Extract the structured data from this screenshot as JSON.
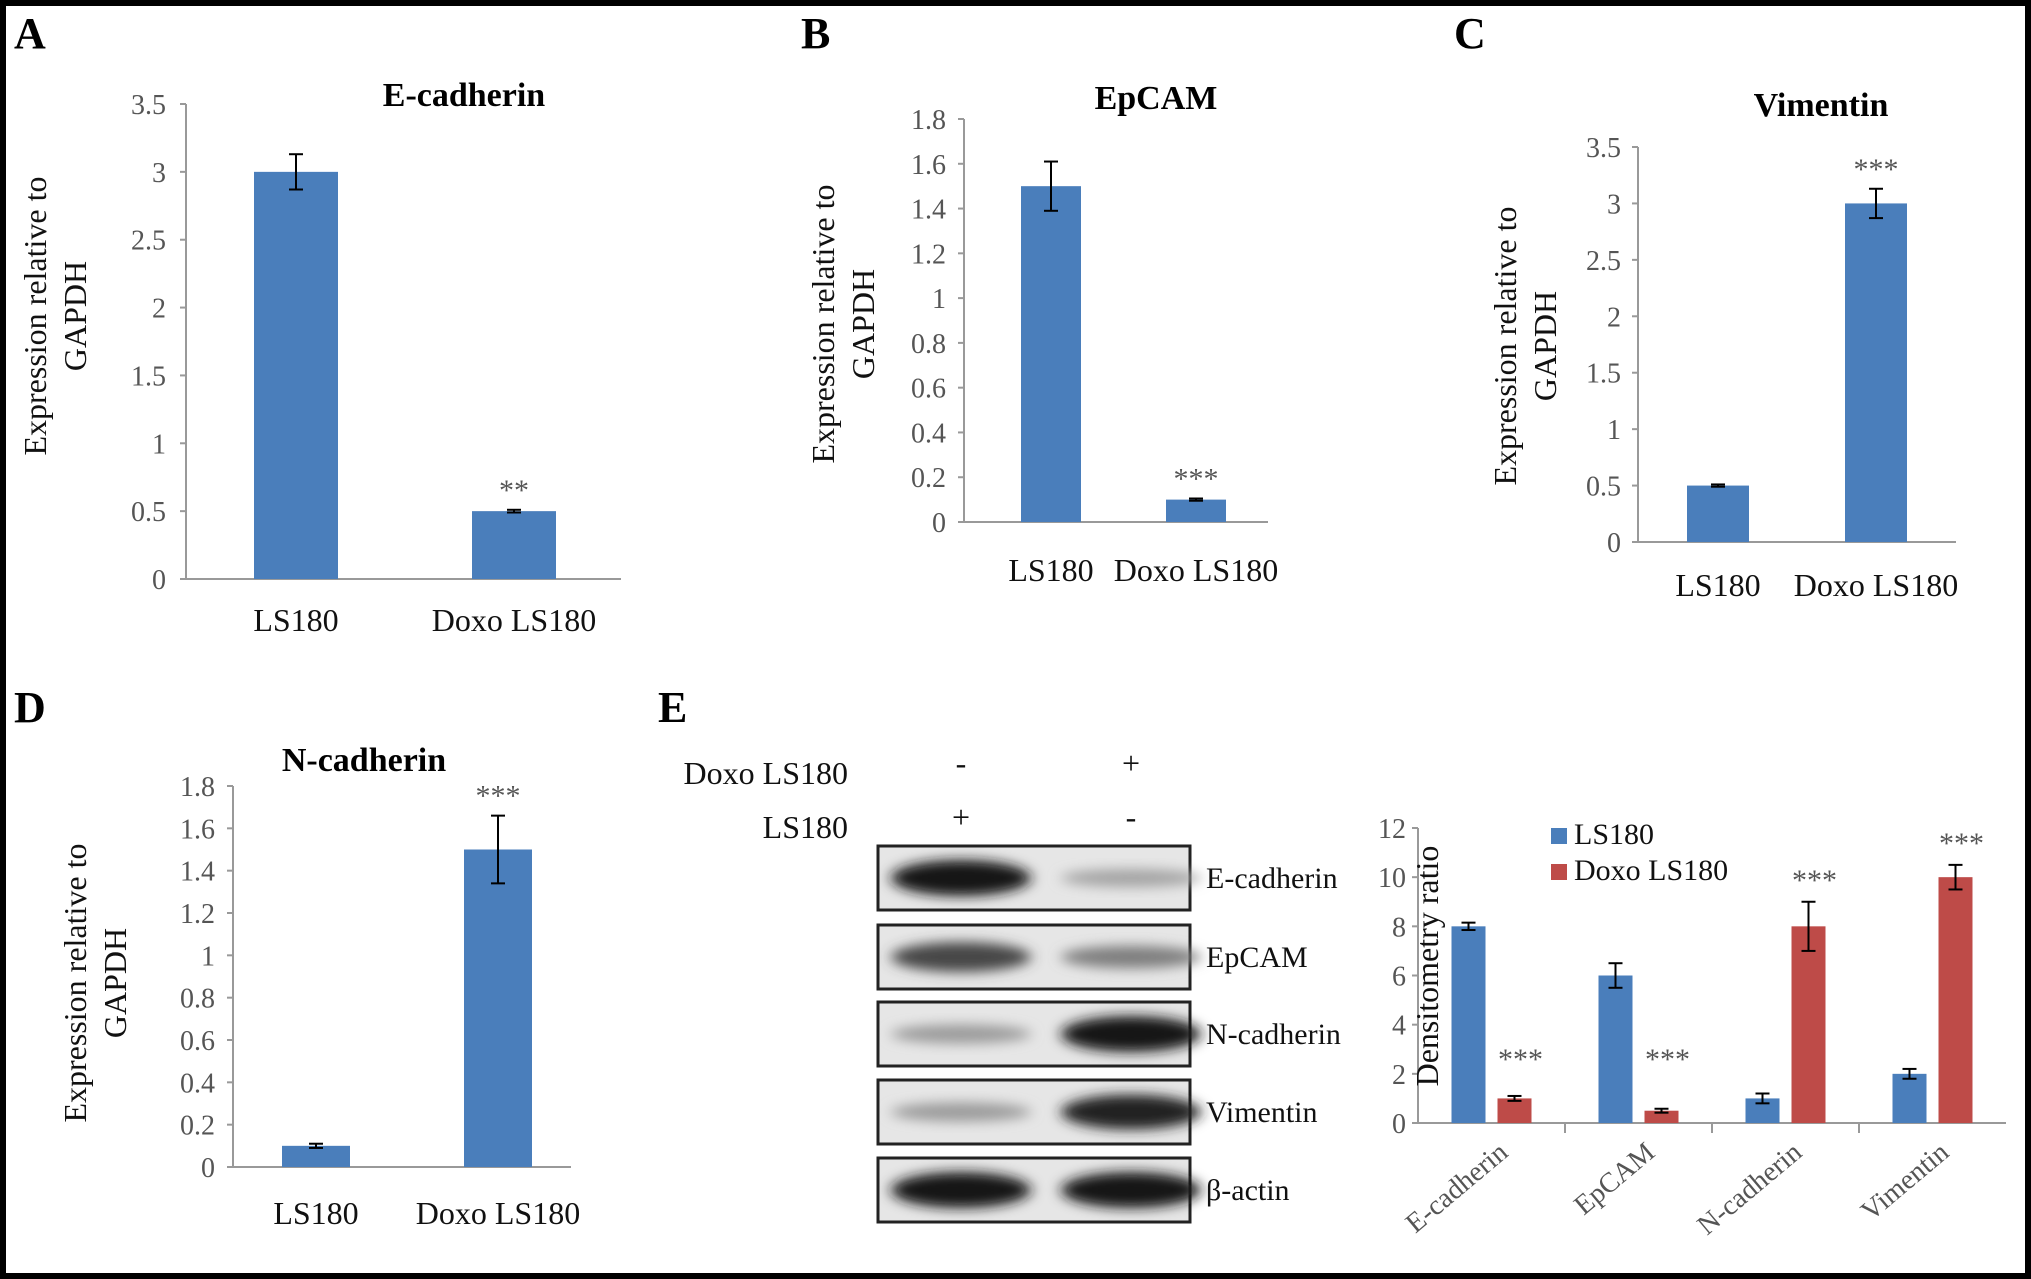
{
  "chart_data": [
    {
      "panel": "A",
      "type": "bar",
      "title": "E-cadherin",
      "ylabel": [
        "Expression relative to",
        "GAPDH"
      ],
      "categories": [
        "LS180",
        "Doxo LS180"
      ],
      "values": [
        3.0,
        0.5
      ],
      "errors": [
        0.13,
        0.01
      ],
      "significance": [
        "",
        "**"
      ],
      "ylim": [
        0,
        3.5
      ],
      "yticks": [
        "0",
        "0.5",
        "1",
        "1.5",
        "2",
        "2.5",
        "3",
        "3.5"
      ],
      "ytick_values": [
        0,
        0.5,
        1,
        1.5,
        2,
        2.5,
        3,
        3.5
      ],
      "color": "#4a7ebb"
    },
    {
      "panel": "B",
      "type": "bar",
      "title": "EpCAM",
      "ylabel": [
        "Expression relative to",
        "GAPDH"
      ],
      "categories": [
        "LS180",
        "Doxo LS180"
      ],
      "values": [
        1.5,
        0.1
      ],
      "errors": [
        0.11,
        0.005
      ],
      "significance": [
        "",
        "***"
      ],
      "ylim": [
        0,
        1.8
      ],
      "yticks": [
        "0",
        "0.2",
        "0.4",
        "0.6",
        "0.8",
        "1",
        "1.2",
        "1.4",
        "1.6",
        "1.8"
      ],
      "ytick_values": [
        0,
        0.2,
        0.4,
        0.6,
        0.8,
        1,
        1.2,
        1.4,
        1.6,
        1.8
      ],
      "color": "#4a7ebb"
    },
    {
      "panel": "C",
      "type": "bar",
      "title": "Vimentin",
      "ylabel": [
        "Expression relative to",
        "GAPDH"
      ],
      "categories": [
        "LS180",
        "Doxo LS180"
      ],
      "values": [
        0.5,
        3.0
      ],
      "errors": [
        0.01,
        0.13
      ],
      "significance": [
        "",
        "***"
      ],
      "ylim": [
        0,
        3.5
      ],
      "yticks": [
        "0",
        "0.5",
        "1",
        "1.5",
        "2",
        "2.5",
        "3",
        "3.5"
      ],
      "ytick_values": [
        0,
        0.5,
        1,
        1.5,
        2,
        2.5,
        3,
        3.5
      ],
      "color": "#4a7ebb"
    },
    {
      "panel": "D",
      "type": "bar",
      "title": "N-cadherin",
      "ylabel": [
        "Expression relative to",
        "GAPDH"
      ],
      "categories": [
        "LS180",
        "Doxo LS180"
      ],
      "values": [
        0.1,
        1.5
      ],
      "errors": [
        0.01,
        0.16
      ],
      "significance": [
        "",
        "***"
      ],
      "ylim": [
        0,
        1.8
      ],
      "yticks": [
        "0",
        "0.2",
        "0.4",
        "0.6",
        "0.8",
        "1",
        "1.2",
        "1.4",
        "1.6",
        "1.8"
      ],
      "ytick_values": [
        0,
        0.2,
        0.4,
        0.6,
        0.8,
        1,
        1.2,
        1.4,
        1.6,
        1.8
      ],
      "color": "#4a7ebb"
    },
    {
      "panel": "E",
      "type": "bar",
      "title": "",
      "ylabel": "Densitometry  ratio",
      "categories": [
        "E-cadherin",
        "EpCAM",
        "N-cadherin",
        "Vimentin"
      ],
      "series": [
        {
          "name": "LS180",
          "values": [
            8,
            6,
            1,
            2
          ],
          "errors": [
            0.15,
            0.5,
            0.2,
            0.2
          ],
          "color": "#4a7ebb"
        },
        {
          "name": "Doxo LS180",
          "values": [
            1,
            0.5,
            8,
            10
          ],
          "errors": [
            0.1,
            0.08,
            1.0,
            0.5
          ],
          "color": "#be4b48"
        }
      ],
      "significance": [
        "***",
        "***",
        "***",
        "***"
      ],
      "ylim": [
        0,
        12
      ],
      "yticks": [
        "0",
        "2",
        "4",
        "6",
        "8",
        "10",
        "12"
      ],
      "ytick_values": [
        0,
        2,
        4,
        6,
        8,
        10,
        12
      ],
      "legend": "top-left"
    }
  ],
  "blot": {
    "panel": "E",
    "rows": [
      {
        "label": "Doxo LS180",
        "lane1": "-",
        "lane2": "+"
      },
      {
        "label": "LS180",
        "lane1": "+",
        "lane2": "-"
      }
    ],
    "bands": [
      {
        "label": "E-cadherin",
        "intensity": [
          1.0,
          0.25
        ]
      },
      {
        "label": "EpCAM",
        "intensity": [
          0.75,
          0.45
        ]
      },
      {
        "label": "N-cadherin",
        "intensity": [
          0.3,
          1.0
        ]
      },
      {
        "label": "Vimentin",
        "intensity": [
          0.3,
          0.95
        ]
      },
      {
        "label": "β-actin",
        "intensity": [
          1.0,
          1.0
        ]
      }
    ]
  }
}
